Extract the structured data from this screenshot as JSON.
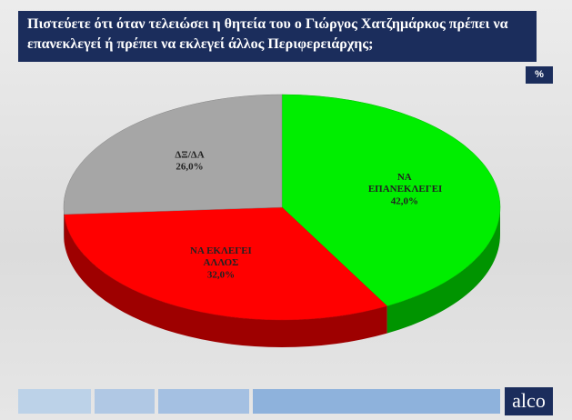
{
  "chart_data": {
    "type": "pie3d",
    "title": "Πιστεύετε ότι όταν τελειώσει η θητεία του ο Γιώργος Χατζημάρκος πρέπει να επανεκλεγεί ή πρέπει να εκλεγεί άλλος Περιφερειάρχης;",
    "unit_label": "%",
    "categories": [
      "ΝΑ ΕΠΑΝΕΚΛΕΓΕΙ",
      "ΝΑ ΕΚΛΕΓΕΙ ΑΛΛΟΣ",
      "ΔΞ/ΔΑ"
    ],
    "values": [
      42,
      32,
      26
    ],
    "value_labels": [
      "42,0%",
      "32,0%",
      "26,0%"
    ],
    "colors": [
      "#00ee00",
      "#ff0000",
      "#a6a6a6"
    ]
  },
  "logo": "alco"
}
